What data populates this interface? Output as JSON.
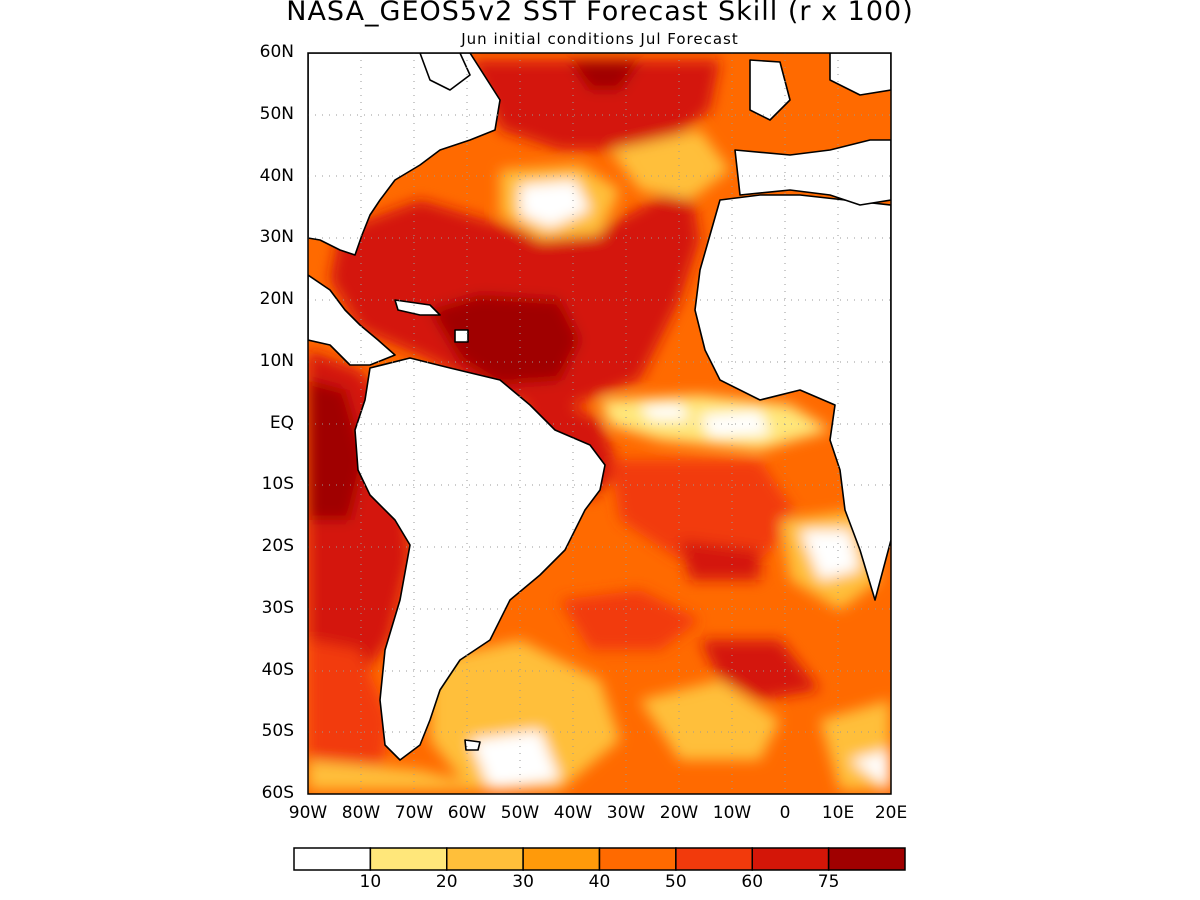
{
  "title": "NASA_GEOS5v2 SST Forecast Skill (r x 100)",
  "subtitle": "Jun initial conditions  Jul Forecast",
  "lat_labels": [
    "60N",
    "50N",
    "40N",
    "30N",
    "20N",
    "10N",
    "EQ",
    "10S",
    "20S",
    "30S",
    "40S",
    "50S",
    "60S"
  ],
  "lon_labels": [
    "90W",
    "80W",
    "70W",
    "60W",
    "50W",
    "40W",
    "30W",
    "20W",
    "10W",
    "0",
    "10E",
    "20E"
  ],
  "colorbar": {
    "colors": [
      "#ffffff",
      "#ffe77a",
      "#ffbf3a",
      "#ff9a0a",
      "#ff6a00",
      "#f23a0c",
      "#d41608",
      "#a00000"
    ],
    "labels": [
      "10",
      "20",
      "30",
      "40",
      "50",
      "60",
      "75"
    ]
  }
}
